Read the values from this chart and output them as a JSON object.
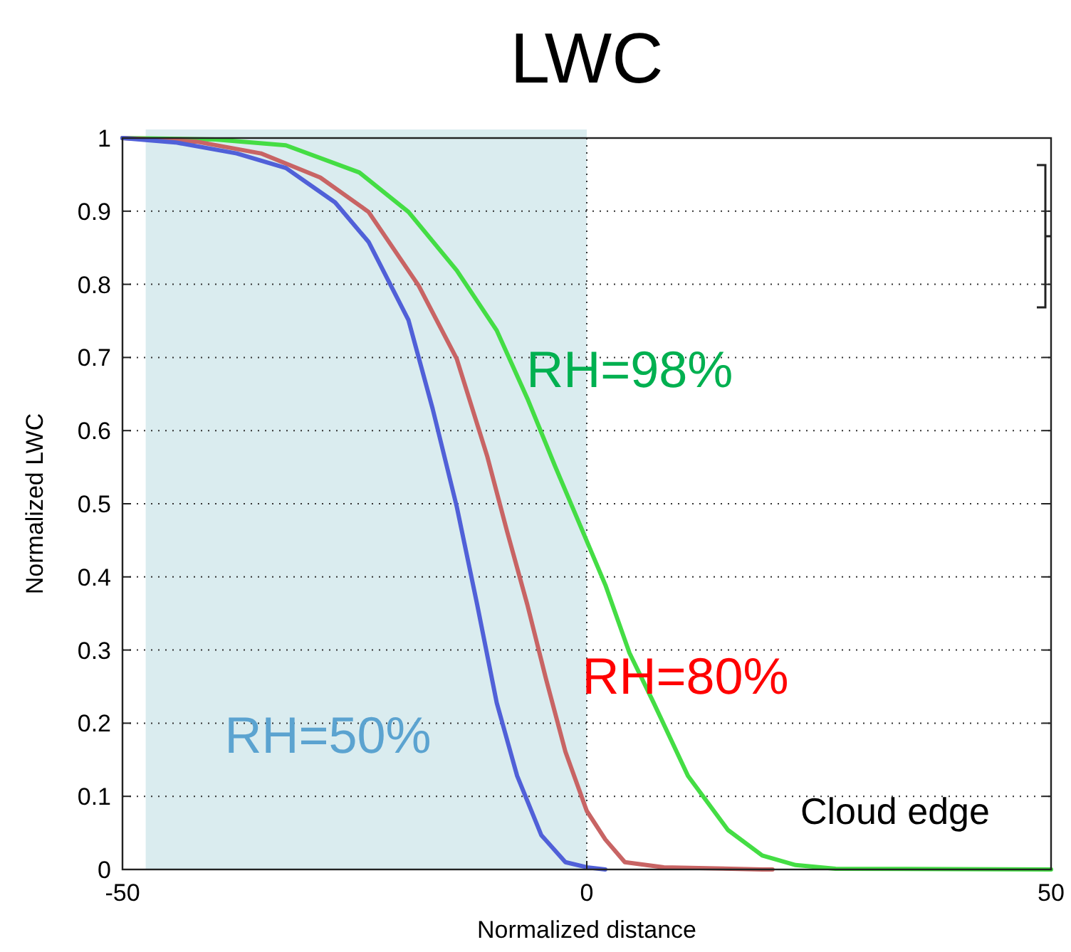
{
  "chart_data": {
    "type": "line",
    "title": "LWC",
    "xlabel": "Normalized distance",
    "ylabel": "Normalized LWC",
    "xlim": [
      -50,
      50
    ],
    "xticks": [
      -50,
      0,
      50
    ],
    "ylim": [
      0,
      1
    ],
    "yticks": [
      0,
      0.1,
      0.2,
      0.3,
      0.4,
      0.5,
      0.6,
      0.7,
      0.8,
      0.9,
      1
    ],
    "grid": true,
    "bands": [
      {
        "axis": "x",
        "from": -47.5,
        "to": 0,
        "color": "#daecef"
      }
    ],
    "annotations": [
      "Cloud edge"
    ],
    "series": [
      {
        "name": "RH=98%",
        "color": "#44dd44",
        "x": [
          -50,
          -40,
          -32.4,
          -24.5,
          -19.2,
          -14,
          -9.7,
          -6.4,
          -3.4,
          0,
          2,
          4.6,
          7.2,
          10.9,
          15.2,
          18.9,
          22.5,
          26.8,
          50
        ],
        "values": [
          1,
          0.998,
          0.99,
          0.953,
          0.899,
          0.819,
          0.737,
          0.644,
          0.551,
          0.449,
          0.389,
          0.296,
          0.228,
          0.128,
          0.054,
          0.019,
          0.006,
          0.001,
          0
        ]
      },
      {
        "name": "RH=80%",
        "color": "#c86464",
        "x": [
          -50,
          -42,
          -35.1,
          -28.7,
          -23.5,
          -18.1,
          -14,
          -10.7,
          -8.6,
          -6.4,
          -4.4,
          -2.3,
          0,
          2,
          4.1,
          8.3,
          18.9,
          20
        ],
        "values": [
          1,
          0.995,
          0.979,
          0.946,
          0.899,
          0.798,
          0.698,
          0.564,
          0.463,
          0.362,
          0.261,
          0.161,
          0.08,
          0.041,
          0.01,
          0.003,
          0,
          0
        ]
      },
      {
        "name": "RH=50%",
        "color": "#5060d8",
        "x": [
          -50,
          -44.3,
          -37.7,
          -32.4,
          -27.1,
          -23.5,
          -19.2,
          -16.6,
          -14,
          -11.8,
          -9.7,
          -7.5,
          -4.9,
          -2.3,
          0,
          2
        ],
        "values": [
          1,
          0.994,
          0.979,
          0.959,
          0.912,
          0.858,
          0.751,
          0.63,
          0.496,
          0.362,
          0.228,
          0.128,
          0.047,
          0.01,
          0.003,
          0
        ]
      }
    ]
  }
}
